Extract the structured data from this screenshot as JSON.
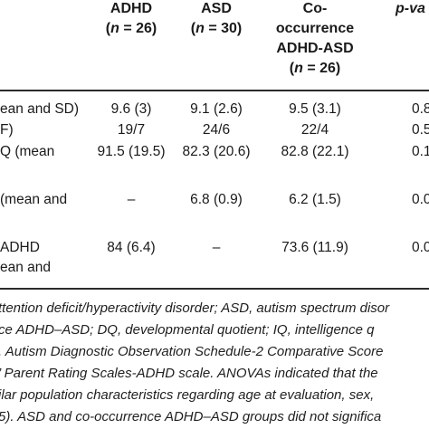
{
  "table": {
    "headers": {
      "adhd": {
        "name": "ADHD",
        "n_label": "n",
        "n_value": " = 26)"
      },
      "asd": {
        "name": "ASD",
        "n_label": "n",
        "n_value": " = 30)"
      },
      "cooc": {
        "line1": "Co-",
        "line2": "occurrence",
        "line3": "ADHD-ASD",
        "n_label": "n",
        "n_value": " = 26)"
      },
      "pval": {
        "name": "p-va"
      }
    },
    "rows": [
      {
        "label": "ean and SD)",
        "adhd": "9.6 (3)",
        "asd": "9.1 (2.6)",
        "cooc": "9.5 (3.1)",
        "p": "0.8"
      },
      {
        "label": "F)",
        "adhd": "19/7",
        "asd": "24/6",
        "cooc": "22/4",
        "p": "0.5"
      },
      {
        "label": "Q (mean",
        "adhd": "91.5 (19.5)",
        "asd": "82.3 (20.6)",
        "cooc": "82.8 (22.1)",
        "p": "0.1"
      },
      {
        "label": "(mean and",
        "adhd": "–",
        "asd": "6.8 (0.9)",
        "cooc": "6.2 (1.5)",
        "p": "0.0"
      },
      {
        "label": "ADHD",
        "label2": "ean and",
        "adhd": "84 (6.4)",
        "asd": "–",
        "cooc": "73.6 (11.9)",
        "p": "0.0"
      }
    ]
  },
  "footnote": [
    "ttention deficit/hyperactivity disorder; ASD, autism spectrum disor",
    "ce ADHD–ASD; DQ, developmental quotient; IQ, intelligence q",
    ", Autism Diagnostic Observation Schedule-2 Comparative Score",
    "’ Parent Rating Scales-ADHD scale. ANOVAs indicated that the",
    "ilar population characteristics regarding age at evaluation, sex,",
    "5). ASD and co-occurrence ADHD–ASD groups did not significa"
  ]
}
